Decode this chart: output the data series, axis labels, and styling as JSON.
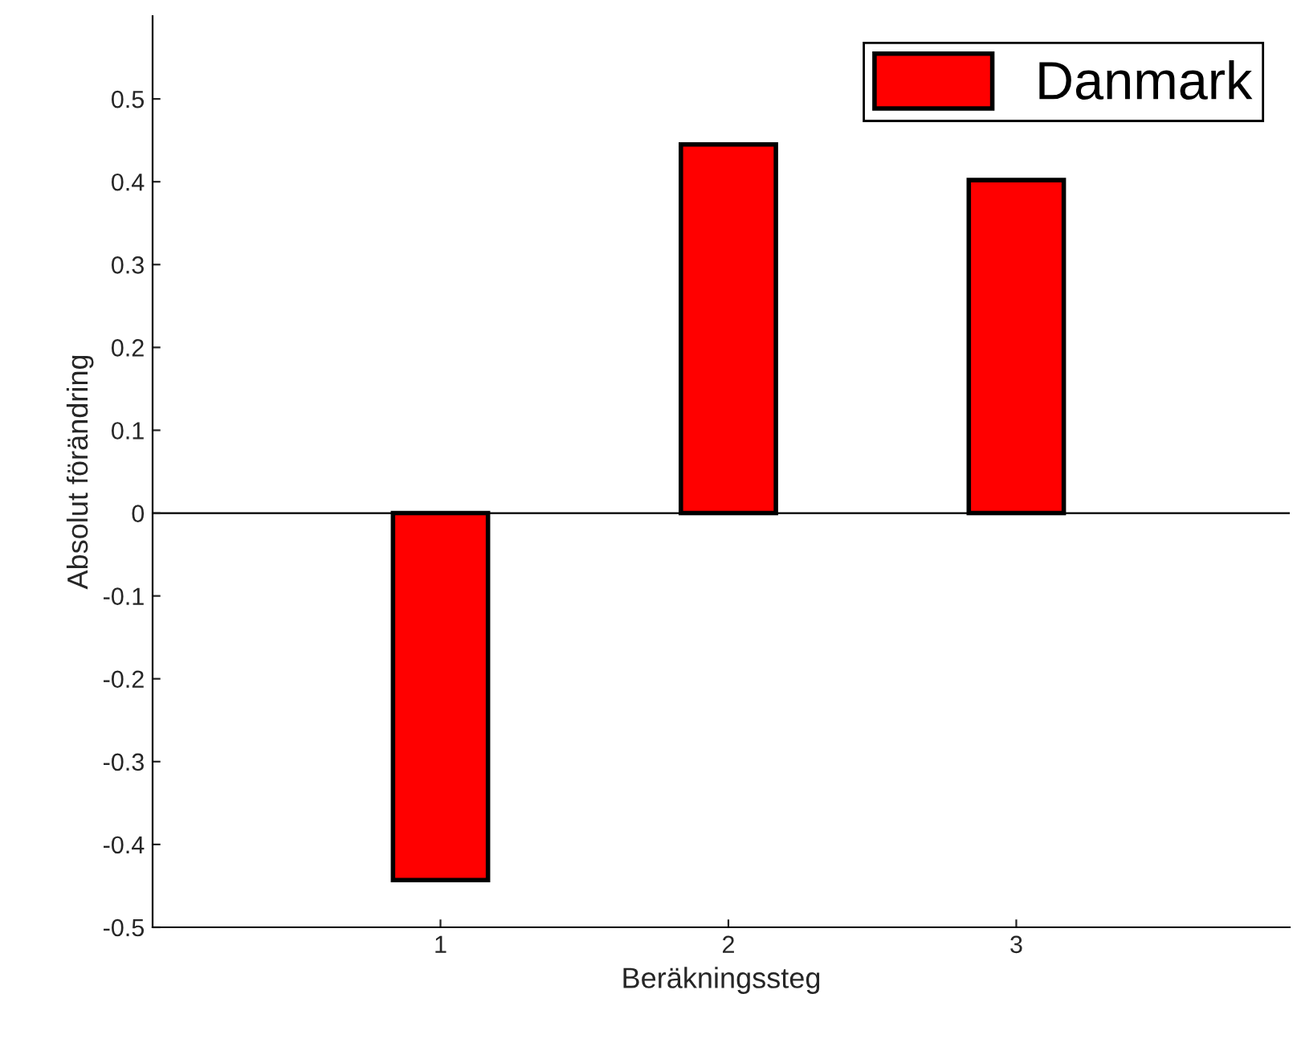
{
  "chart_data": {
    "type": "bar",
    "xlabel": "Beräkningssteg",
    "ylabel": "Absolut förändring",
    "categories": [
      "1",
      "2",
      "3"
    ],
    "series": [
      {
        "name": "Danmark",
        "color": "#ff0000",
        "values": [
          -0.443,
          0.445,
          0.402
        ]
      }
    ],
    "ylim": [
      -0.5,
      0.6
    ],
    "yticks": [
      -0.5,
      -0.4,
      -0.3,
      -0.2,
      -0.1,
      0,
      0.1,
      0.2,
      0.3,
      0.4,
      0.5
    ],
    "ref_lines": [
      {
        "axis": "y",
        "value": 0,
        "color": "#000000"
      }
    ],
    "legend": "top right",
    "grid": false
  }
}
